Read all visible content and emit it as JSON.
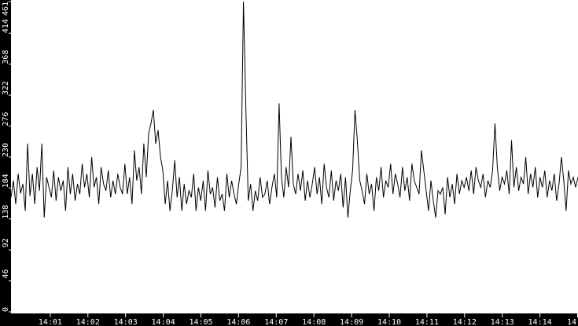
{
  "chart_data": {
    "type": "line",
    "title": "",
    "xlabel": "",
    "ylabel": "",
    "ylim": [
      0,
      461
    ],
    "xlim": [
      "14:00",
      "14:15"
    ],
    "grid": false,
    "y_ticks": [
      "0",
      "46",
      "92",
      "138",
      "184",
      "230",
      "276",
      "322",
      "368",
      "414",
      "461"
    ],
    "x_ticks": [
      "14:01",
      "14:02",
      "14:03",
      "14:04",
      "14:05",
      "14:06",
      "14:07",
      "14:08",
      "14:09",
      "14:10",
      "14:11",
      "14:12",
      "14:13",
      "14:14",
      "14"
    ],
    "colors": {
      "background": "#000000",
      "plot": "#ffffff",
      "line": "#000000",
      "text": "#ffffff"
    },
    "series": [
      {
        "values": [
          170,
          195,
          160,
          205,
          176,
          190,
          150,
          250,
          172,
          205,
          160,
          215,
          180,
          250,
          140,
          200,
          185,
          170,
          210,
          165,
          200,
          180,
          195,
          150,
          215,
          175,
          205,
          165,
          190,
          175,
          220,
          185,
          205,
          170,
          230,
          185,
          200,
          160,
          215,
          190,
          180,
          210,
          170,
          195,
          175,
          205,
          185,
          175,
          220,
          175,
          200,
          160,
          240,
          195,
          215,
          175,
          250,
          200,
          265,
          280,
          300,
          250,
          270,
          230,
          210,
          160,
          195,
          150,
          180,
          225,
          170,
          200,
          150,
          190,
          160,
          180,
          170,
          205,
          150,
          185,
          165,
          195,
          150,
          210,
          175,
          185,
          155,
          200,
          165,
          175,
          150,
          205,
          170,
          195,
          175,
          160,
          190,
          215,
          461,
          300,
          165,
          190,
          150,
          180,
          165,
          200,
          170,
          175,
          195,
          160,
          185,
          205,
          170,
          310,
          200,
          170,
          215,
          185,
          260,
          190,
          175,
          205,
          180,
          210,
          165,
          195,
          170,
          190,
          215,
          175,
          200,
          160,
          220,
          185,
          170,
          210,
          165,
          195,
          180,
          205,
          155,
          200,
          140,
          180,
          210,
          300,
          255,
          195,
          180,
          160,
          205,
          175,
          190,
          150,
          200,
          180,
          215,
          170,
          195,
          185,
          220,
          175,
          205,
          190,
          170,
          215,
          180,
          200,
          165,
          220,
          195,
          185,
          175,
          240,
          210,
          180,
          150,
          195,
          165,
          140,
          180,
          175,
          185,
          145,
          200,
          170,
          190,
          160,
          205,
          175,
          195,
          185,
          200,
          180,
          210,
          175,
          215,
          195,
          185,
          205,
          170,
          195,
          185,
          210,
          280,
          215,
          180,
          200,
          190,
          210,
          175,
          255,
          185,
          215,
          180,
          200,
          190,
          230,
          175,
          205,
          185,
          215,
          170,
          200,
          185,
          210,
          170,
          195,
          180,
          205,
          165,
          190,
          230,
          195,
          150,
          210,
          190,
          200,
          185,
          200
        ]
      }
    ]
  }
}
